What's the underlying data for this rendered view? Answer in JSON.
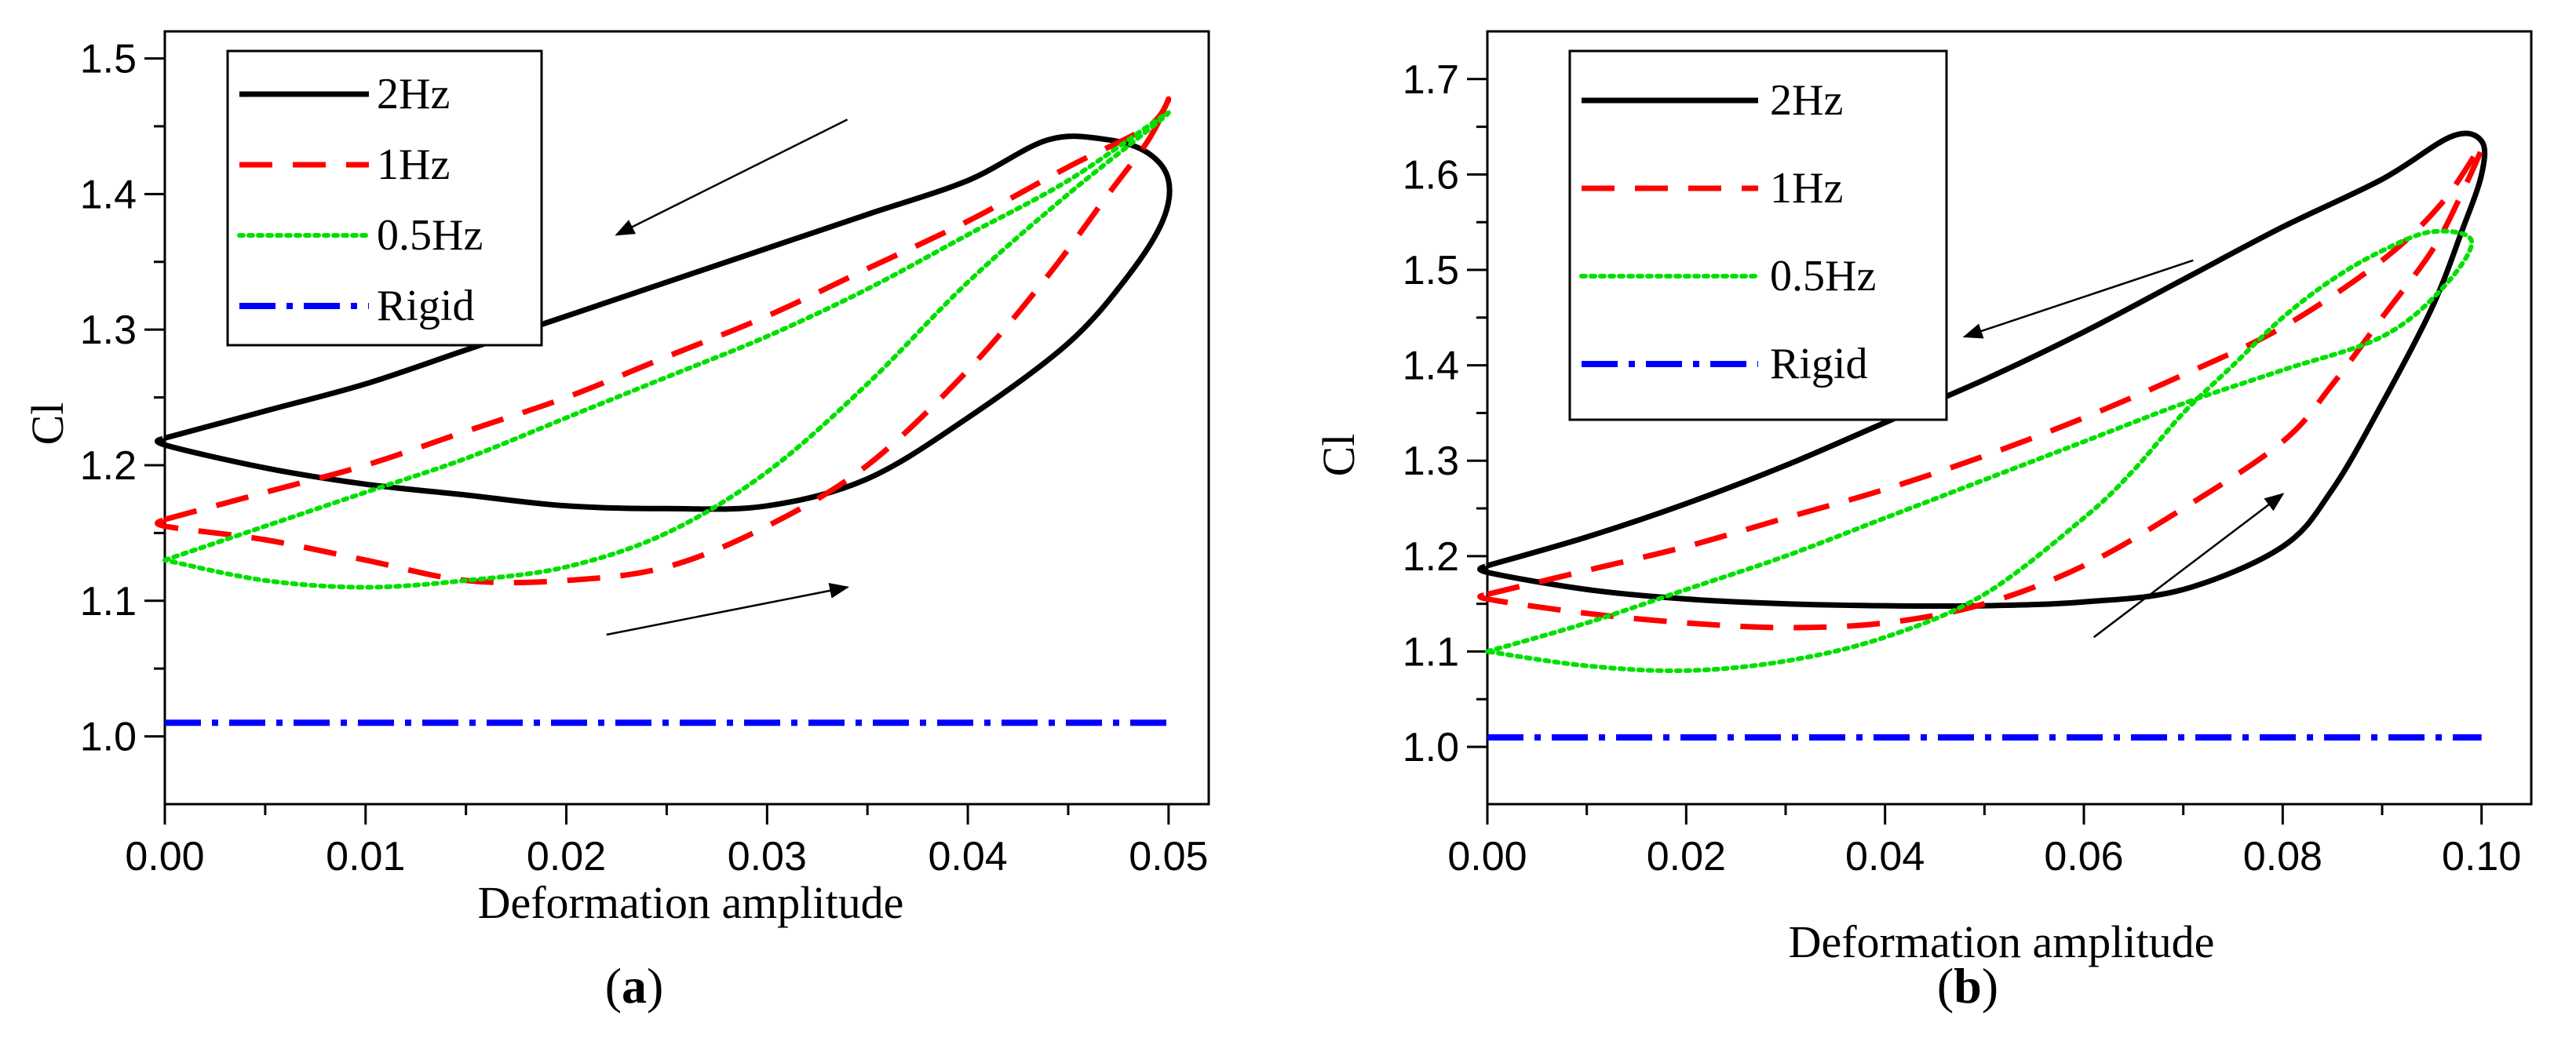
{
  "chart_data": [
    {
      "type": "line",
      "panel_label": "a",
      "xlabel": "Deformation amplitude",
      "ylabel": "Cl",
      "xlim": [
        0,
        0.052
      ],
      "ylim": [
        0.95,
        1.52
      ],
      "x_ticks": [
        "0.00",
        "0.01",
        "0.02",
        "0.03",
        "0.04",
        "0.05"
      ],
      "y_ticks": [
        "1.0",
        "1.1",
        "1.2",
        "1.3",
        "1.4",
        "1.5"
      ],
      "legend": [
        "2Hz",
        "1Hz",
        "0.5Hz",
        "Rigid"
      ],
      "series": [
        {
          "name": "2Hz",
          "color": "#000000",
          "style": "solid",
          "points": [
            [
              0,
              1.22
            ],
            [
              0.005,
              1.24
            ],
            [
              0.01,
              1.26
            ],
            [
              0.015,
              1.285
            ],
            [
              0.02,
              1.31
            ],
            [
              0.025,
              1.335
            ],
            [
              0.03,
              1.36
            ],
            [
              0.035,
              1.385
            ],
            [
              0.04,
              1.41
            ],
            [
              0.044,
              1.44
            ],
            [
              0.047,
              1.44
            ],
            [
              0.049,
              1.43
            ],
            [
              0.05,
              1.41
            ],
            [
              0.0497,
              1.38
            ],
            [
              0.048,
              1.34
            ],
            [
              0.045,
              1.29
            ],
            [
              0.04,
              1.235
            ],
            [
              0.035,
              1.19
            ],
            [
              0.03,
              1.17
            ],
            [
              0.025,
              1.168
            ],
            [
              0.02,
              1.17
            ],
            [
              0.015,
              1.178
            ],
            [
              0.01,
              1.186
            ],
            [
              0.005,
              1.198
            ],
            [
              0,
              1.215
            ],
            [
              0,
              1.22
            ]
          ]
        },
        {
          "name": "1Hz",
          "color": "#ff0000",
          "style": "dashed",
          "points": [
            [
              0,
              1.16
            ],
            [
              0.005,
              1.18
            ],
            [
              0.01,
              1.2
            ],
            [
              0.015,
              1.225
            ],
            [
              0.02,
              1.25
            ],
            [
              0.025,
              1.28
            ],
            [
              0.03,
              1.31
            ],
            [
              0.035,
              1.345
            ],
            [
              0.04,
              1.38
            ],
            [
              0.045,
              1.42
            ],
            [
              0.049,
              1.45
            ],
            [
              0.05,
              1.47
            ],
            [
              0.049,
              1.44
            ],
            [
              0.047,
              1.4
            ],
            [
              0.044,
              1.34
            ],
            [
              0.04,
              1.27
            ],
            [
              0.035,
              1.2
            ],
            [
              0.03,
              1.155
            ],
            [
              0.025,
              1.125
            ],
            [
              0.02,
              1.115
            ],
            [
              0.015,
              1.115
            ],
            [
              0.01,
              1.13
            ],
            [
              0.005,
              1.145
            ],
            [
              0,
              1.155
            ],
            [
              0,
              1.16
            ]
          ]
        },
        {
          "name": "0.5Hz",
          "color": "#00e000",
          "style": "dotted",
          "points": [
            [
              0,
              1.13
            ],
            [
              0.005,
              1.155
            ],
            [
              0.01,
              1.18
            ],
            [
              0.015,
              1.205
            ],
            [
              0.02,
              1.235
            ],
            [
              0.025,
              1.265
            ],
            [
              0.03,
              1.295
            ],
            [
              0.035,
              1.33
            ],
            [
              0.04,
              1.37
            ],
            [
              0.045,
              1.41
            ],
            [
              0.05,
              1.46
            ],
            [
              0.045,
              1.4
            ],
            [
              0.04,
              1.335
            ],
            [
              0.035,
              1.26
            ],
            [
              0.03,
              1.195
            ],
            [
              0.025,
              1.15
            ],
            [
              0.02,
              1.125
            ],
            [
              0.015,
              1.115
            ],
            [
              0.01,
              1.11
            ],
            [
              0.005,
              1.115
            ],
            [
              0,
              1.13
            ]
          ]
        },
        {
          "name": "Rigid",
          "color": "#0000ff",
          "style": "dashdot",
          "points": [
            [
              0,
              1.01
            ],
            [
              0.05,
              1.01
            ]
          ]
        }
      ],
      "arrows": [
        {
          "from": [
            0.034,
            1.455
          ],
          "to": [
            0.0225,
            1.37
          ]
        },
        {
          "from": [
            0.022,
            1.075
          ],
          "to": [
            0.034,
            1.11
          ]
        }
      ]
    },
    {
      "type": "line",
      "panel_label": "b",
      "xlabel": "Deformation amplitude",
      "ylabel": "Cl",
      "xlim": [
        0,
        0.105
      ],
      "ylim": [
        0.94,
        1.75
      ],
      "x_ticks": [
        "0.00",
        "0.02",
        "0.04",
        "0.06",
        "0.08",
        "0.10"
      ],
      "y_ticks": [
        "1.0",
        "1.1",
        "1.2",
        "1.3",
        "1.4",
        "1.5",
        "1.6",
        "1.7"
      ],
      "legend": [
        "2Hz",
        "1Hz",
        "0.5Hz",
        "Rigid"
      ],
      "series": [
        {
          "name": "2Hz",
          "color": "#000000",
          "style": "solid",
          "points": [
            [
              0,
              1.19
            ],
            [
              0.01,
              1.22
            ],
            [
              0.02,
              1.255
            ],
            [
              0.03,
              1.295
            ],
            [
              0.04,
              1.34
            ],
            [
              0.05,
              1.385
            ],
            [
              0.06,
              1.435
            ],
            [
              0.07,
              1.49
            ],
            [
              0.08,
              1.545
            ],
            [
              0.09,
              1.595
            ],
            [
              0.097,
              1.64
            ],
            [
              0.1,
              1.635
            ],
            [
              0.1,
              1.6
            ],
            [
              0.098,
              1.54
            ],
            [
              0.095,
              1.46
            ],
            [
              0.09,
              1.36
            ],
            [
              0.085,
              1.27
            ],
            [
              0.08,
              1.21
            ],
            [
              0.07,
              1.165
            ],
            [
              0.06,
              1.152
            ],
            [
              0.05,
              1.148
            ],
            [
              0.04,
              1.148
            ],
            [
              0.03,
              1.15
            ],
            [
              0.02,
              1.155
            ],
            [
              0.01,
              1.165
            ],
            [
              0,
              1.183
            ],
            [
              0,
              1.19
            ]
          ]
        },
        {
          "name": "1Hz",
          "color": "#ff0000",
          "style": "dashed",
          "points": [
            [
              0,
              1.16
            ],
            [
              0.01,
              1.185
            ],
            [
              0.02,
              1.21
            ],
            [
              0.03,
              1.24
            ],
            [
              0.04,
              1.27
            ],
            [
              0.05,
              1.305
            ],
            [
              0.06,
              1.345
            ],
            [
              0.07,
              1.39
            ],
            [
              0.08,
              1.44
            ],
            [
              0.09,
              1.51
            ],
            [
              0.096,
              1.57
            ],
            [
              0.1,
              1.63
            ],
            [
              0.098,
              1.58
            ],
            [
              0.095,
              1.52
            ],
            [
              0.09,
              1.45
            ],
            [
              0.085,
              1.38
            ],
            [
              0.08,
              1.32
            ],
            [
              0.07,
              1.25
            ],
            [
              0.06,
              1.19
            ],
            [
              0.05,
              1.15
            ],
            [
              0.04,
              1.13
            ],
            [
              0.03,
              1.125
            ],
            [
              0.02,
              1.13
            ],
            [
              0.01,
              1.14
            ],
            [
              0,
              1.155
            ],
            [
              0,
              1.16
            ]
          ]
        },
        {
          "name": "0.5Hz",
          "color": "#00e000",
          "style": "dotted",
          "points": [
            [
              0,
              1.1
            ],
            [
              0.01,
              1.13
            ],
            [
              0.02,
              1.165
            ],
            [
              0.03,
              1.2
            ],
            [
              0.04,
              1.24
            ],
            [
              0.05,
              1.28
            ],
            [
              0.06,
              1.32
            ],
            [
              0.07,
              1.36
            ],
            [
              0.08,
              1.395
            ],
            [
              0.09,
              1.43
            ],
            [
              0.096,
              1.48
            ],
            [
              0.099,
              1.53
            ],
            [
              0.095,
              1.54
            ],
            [
              0.09,
              1.52
            ],
            [
              0.085,
              1.49
            ],
            [
              0.08,
              1.45
            ],
            [
              0.075,
              1.4
            ],
            [
              0.07,
              1.35
            ],
            [
              0.065,
              1.29
            ],
            [
              0.06,
              1.24
            ],
            [
              0.05,
              1.16
            ],
            [
              0.04,
              1.115
            ],
            [
              0.03,
              1.09
            ],
            [
              0.02,
              1.08
            ],
            [
              0.01,
              1.085
            ],
            [
              0,
              1.1
            ]
          ]
        },
        {
          "name": "Rigid",
          "color": "#0000ff",
          "style": "dashdot",
          "points": [
            [
              0,
              1.01
            ],
            [
              0.1,
              1.01
            ]
          ]
        }
      ],
      "arrows": [
        {
          "from": [
            0.071,
            1.51
          ],
          "to": [
            0.048,
            1.43
          ]
        },
        {
          "from": [
            0.061,
            1.115
          ],
          "to": [
            0.08,
            1.265
          ]
        }
      ]
    }
  ]
}
